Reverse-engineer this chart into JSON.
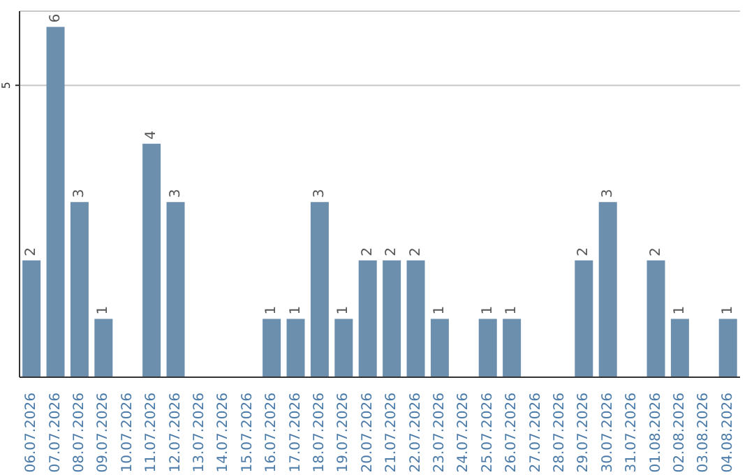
{
  "chart_data": {
    "type": "bar",
    "categories": [
      "06.07.2026",
      "07.07.2026",
      "08.07.2026",
      "09.07.2026",
      "10.07.2026",
      "11.07.2026",
      "12.07.2026",
      "13.07.2026",
      "14.07.2026",
      "15.07.2026",
      "16.07.2026",
      "17.07.2026",
      "18.07.2026",
      "19.07.2026",
      "20.07.2026",
      "21.07.2026",
      "22.07.2026",
      "23.07.2026",
      "24.07.2026",
      "25.07.2026",
      "26.07.2026",
      "27.07.2026",
      "28.07.2026",
      "29.07.2026",
      "30.07.2026",
      "31.07.2026",
      "01.08.2026",
      "02.08.2026",
      "03.08.2026",
      "04.08.2026"
    ],
    "values": [
      2,
      6,
      3,
      1,
      0,
      4,
      3,
      0,
      0,
      0,
      1,
      1,
      3,
      1,
      2,
      2,
      2,
      1,
      0,
      1,
      1,
      0,
      0,
      2,
      3,
      0,
      2,
      1,
      0,
      1
    ],
    "value_labels": [
      "2",
      "6",
      "3",
      "1",
      null,
      "4",
      "3",
      null,
      null,
      null,
      "1",
      "1",
      "3",
      "1",
      "2",
      "2",
      "2",
      "1",
      null,
      "1",
      "1",
      null,
      null,
      "2",
      "3",
      null,
      "2",
      "1",
      null,
      "1"
    ],
    "color": "#6d8fae",
    "ylim": [
      0,
      6.27
    ],
    "yticks": [
      5
    ],
    "grid": "y"
  }
}
